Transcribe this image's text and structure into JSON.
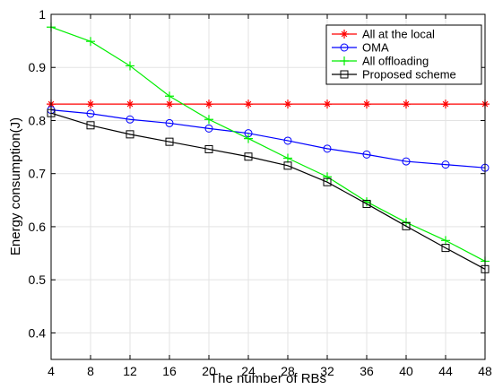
{
  "chart_data": {
    "type": "line",
    "title": "",
    "xlabel": "The number of RBs",
    "ylabel": "Energy consumption(J)",
    "x": [
      4,
      8,
      12,
      16,
      20,
      24,
      28,
      32,
      36,
      40,
      44,
      48
    ],
    "xlim": [
      4,
      48
    ],
    "ylim": [
      0.35,
      1.0
    ],
    "xticks": [
      "4",
      "8",
      "12",
      "16",
      "20",
      "24",
      "28",
      "32",
      "36",
      "40",
      "44",
      "48"
    ],
    "yticks": [
      "0.4",
      "0.5",
      "0.6",
      "0.7",
      "0.8",
      "0.9",
      "1"
    ],
    "ytick_values": [
      0.4,
      0.5,
      0.6,
      0.7,
      0.8,
      0.9,
      1.0
    ],
    "grid": true,
    "legend_position": "top-right",
    "series": [
      {
        "name": "All at the local",
        "color": "#ff0000",
        "marker": "asterisk",
        "values": [
          0.831,
          0.831,
          0.831,
          0.831,
          0.831,
          0.831,
          0.831,
          0.831,
          0.831,
          0.831,
          0.831,
          0.831
        ]
      },
      {
        "name": "OMA",
        "color": "#0000ff",
        "marker": "circle",
        "values": [
          0.82,
          0.813,
          0.802,
          0.795,
          0.785,
          0.776,
          0.762,
          0.747,
          0.736,
          0.723,
          0.717,
          0.711
        ]
      },
      {
        "name": "All offloading",
        "color": "#00ee00",
        "marker": "plus",
        "values": [
          0.976,
          0.949,
          0.903,
          0.846,
          0.802,
          0.766,
          0.729,
          0.694,
          0.647,
          0.608,
          0.574,
          0.535
        ]
      },
      {
        "name": "Proposed scheme",
        "color": "#000000",
        "marker": "square",
        "values": [
          0.814,
          0.791,
          0.774,
          0.76,
          0.746,
          0.732,
          0.715,
          0.684,
          0.643,
          0.601,
          0.56,
          0.52
        ]
      }
    ]
  }
}
